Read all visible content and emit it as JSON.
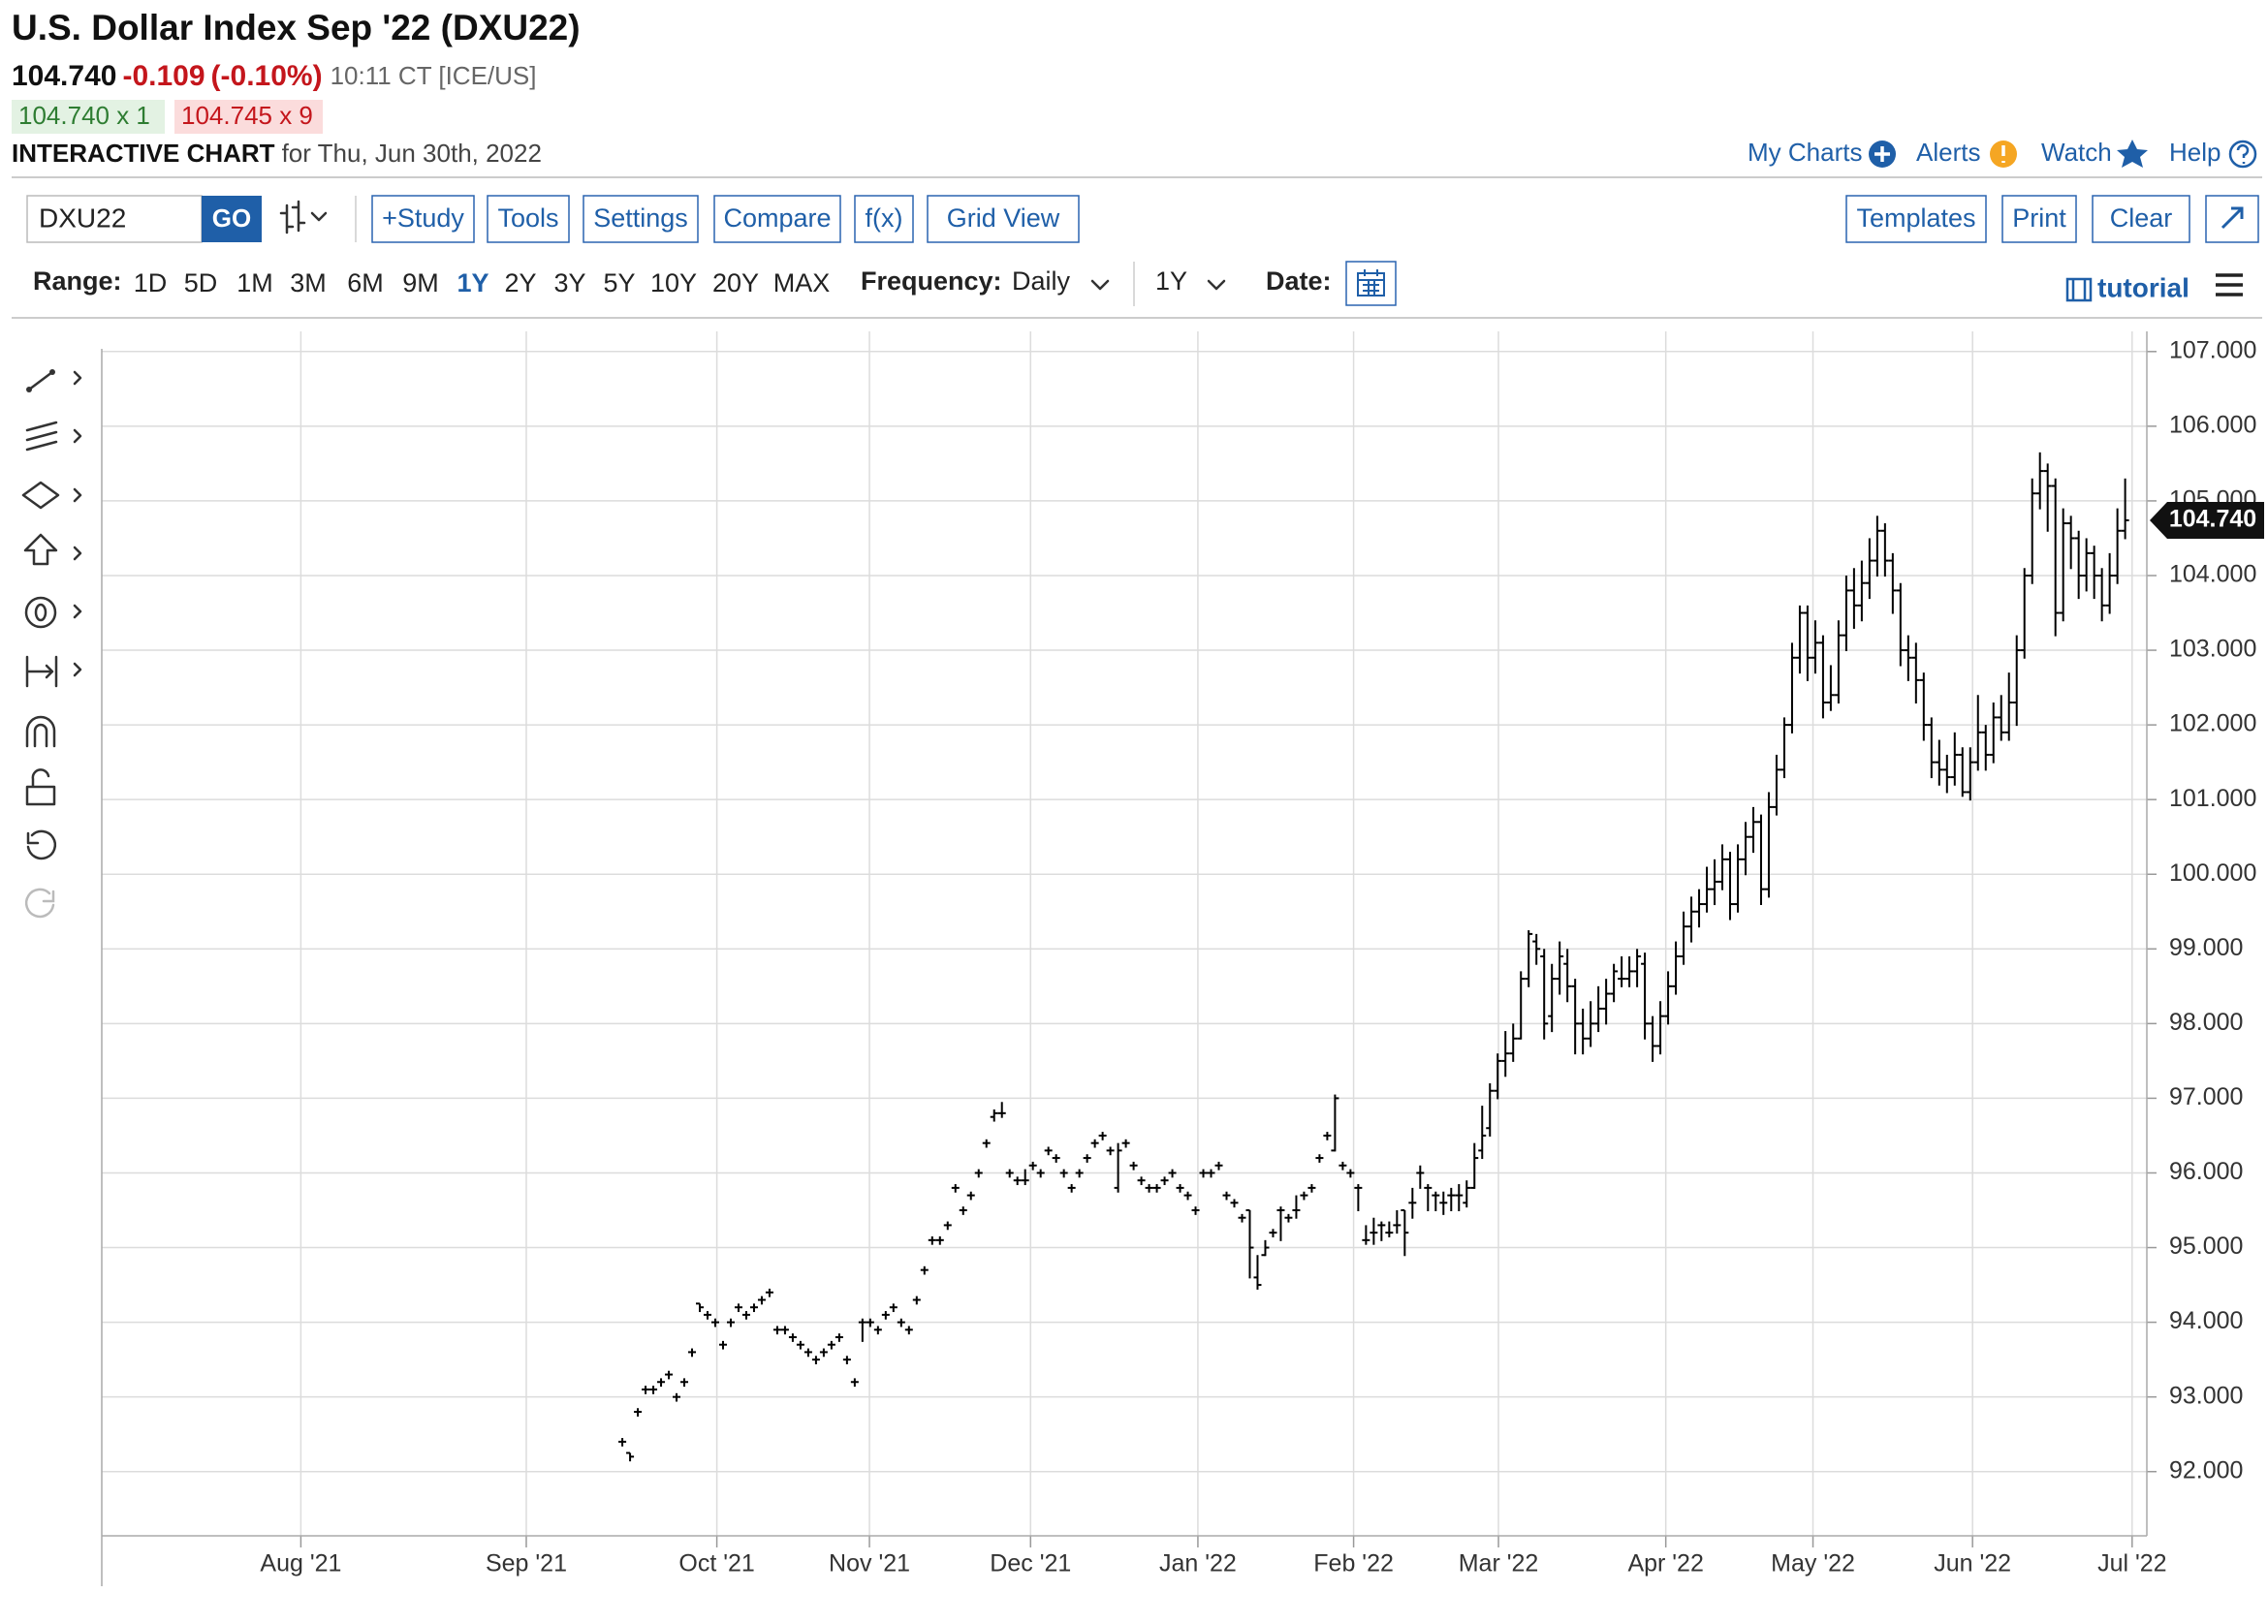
{
  "header": {
    "title": "U.S. Dollar Index Sep '22 (DXU22)",
    "last": "104.740",
    "change": "-0.109",
    "change_percent": "(-0.10%)",
    "time": "10:11 CT [ICE/US]",
    "bid": "104.740 x 1",
    "ask": "104.745 x 9",
    "chart_label": "INTERACTIVE CHART",
    "date": "for Thu, Jun 30th, 2022",
    "links": [
      "My Charts",
      "Alerts",
      "Watch",
      "Help"
    ]
  },
  "toolbar": {
    "symbol": "DXU22",
    "go": "GO",
    "buttons": [
      "+Study",
      "Tools",
      "Settings",
      "Compare",
      "f(x)",
      "Grid View"
    ],
    "right_buttons": [
      "Templates",
      "Print",
      "Clear"
    ]
  },
  "range_bar": {
    "range_label": "Range:",
    "ranges": [
      "1D",
      "5D",
      "1M",
      "3M",
      "6M",
      "9M",
      "1Y",
      "2Y",
      "3Y",
      "5Y",
      "10Y",
      "20Y",
      "MAX"
    ],
    "selected": "1Y",
    "frequency_label": "Frequency:",
    "frequency": "Daily",
    "period": "1Y",
    "date_label": "Date:",
    "tutorial": "tutorial"
  },
  "chart_data": {
    "type": "ohlc",
    "color": "#000000",
    "grid": true,
    "xlim": [
      -67.2,
      196.8
    ],
    "xticks": [
      {
        "value": -41.5,
        "label": "Aug '21"
      },
      {
        "value": -12.4,
        "label": "Sep '21"
      },
      {
        "value": 12.2,
        "label": "Oct '21"
      },
      {
        "value": 31.9,
        "label": "Nov '21"
      },
      {
        "value": 52.7,
        "label": "Dec '21"
      },
      {
        "value": 74.3,
        "label": "Jan '22"
      },
      {
        "value": 94.4,
        "label": "Feb '22"
      },
      {
        "value": 113.1,
        "label": "Mar '22"
      },
      {
        "value": 134.7,
        "label": "Apr '22"
      },
      {
        "value": 153.7,
        "label": "May '22"
      },
      {
        "value": 174.3,
        "label": "Jun '22"
      },
      {
        "value": 194.9,
        "label": "Jul '22"
      }
    ],
    "ylim": [
      91.14,
      107.27
    ],
    "yticks": [
      {
        "value": 92,
        "label": "92.000"
      },
      {
        "value": 93,
        "label": "93.000"
      },
      {
        "value": 94,
        "label": "94.000"
      },
      {
        "value": 95,
        "label": "95.000"
      },
      {
        "value": 96,
        "label": "96.000"
      },
      {
        "value": 97,
        "label": "97.000"
      },
      {
        "value": 98,
        "label": "98.000"
      },
      {
        "value": 99,
        "label": "99.000"
      },
      {
        "value": 100,
        "label": "100.000"
      },
      {
        "value": 101,
        "label": "101.000"
      },
      {
        "value": 102,
        "label": "102.000"
      },
      {
        "value": 103,
        "label": "103.000"
      },
      {
        "value": 104,
        "label": "104.000"
      },
      {
        "value": 105,
        "label": "105.000"
      },
      {
        "value": 106,
        "label": "106.000"
      },
      {
        "value": 107,
        "label": "107.000"
      }
    ],
    "last_price": {
      "value": 104.74,
      "label": "104.740"
    },
    "ohlc": [
      [
        92.4,
        92.45,
        92.35,
        92.4
      ],
      [
        92.25,
        92.25,
        92.15,
        92.2
      ],
      [
        92.8,
        92.85,
        92.75,
        92.8
      ],
      [
        93.1,
        93.15,
        93.05,
        93.1
      ],
      [
        93.1,
        93.15,
        93.05,
        93.1
      ],
      [
        93.2,
        93.25,
        93.15,
        93.2
      ],
      [
        93.3,
        93.35,
        93.25,
        93.3
      ],
      [
        93.0,
        93.05,
        92.95,
        93.0
      ],
      [
        93.2,
        93.25,
        93.15,
        93.2
      ],
      [
        93.6,
        93.65,
        93.55,
        93.6
      ],
      [
        94.25,
        94.25,
        94.15,
        94.2
      ],
      [
        94.1,
        94.15,
        94.05,
        94.1
      ],
      [
        94.0,
        94.05,
        93.95,
        94.0
      ],
      [
        93.7,
        93.75,
        93.65,
        93.7
      ],
      [
        94.0,
        94.05,
        93.95,
        94.0
      ],
      [
        94.2,
        94.25,
        94.15,
        94.2
      ],
      [
        94.1,
        94.15,
        94.05,
        94.1
      ],
      [
        94.2,
        94.25,
        94.15,
        94.2
      ],
      [
        94.3,
        94.35,
        94.25,
        94.3
      ],
      [
        94.4,
        94.45,
        94.35,
        94.4
      ],
      [
        93.9,
        93.95,
        93.85,
        93.9
      ],
      [
        93.9,
        93.95,
        93.85,
        93.9
      ],
      [
        93.8,
        93.85,
        93.75,
        93.8
      ],
      [
        93.7,
        93.75,
        93.65,
        93.7
      ],
      [
        93.6,
        93.65,
        93.55,
        93.6
      ],
      [
        93.5,
        93.55,
        93.45,
        93.5
      ],
      [
        93.6,
        93.65,
        93.55,
        93.6
      ],
      [
        93.7,
        93.75,
        93.65,
        93.7
      ],
      [
        93.8,
        93.85,
        93.75,
        93.8
      ],
      [
        93.5,
        93.55,
        93.45,
        93.5
      ],
      [
        93.2,
        93.25,
        93.15,
        93.2
      ],
      [
        94.0,
        94.05,
        93.75,
        94.0
      ],
      [
        94.0,
        94.05,
        93.95,
        94.0
      ],
      [
        93.9,
        93.95,
        93.85,
        93.9
      ],
      [
        94.1,
        94.15,
        94.05,
        94.1
      ],
      [
        94.2,
        94.25,
        94.15,
        94.2
      ],
      [
        94.0,
        94.05,
        93.95,
        94.0
      ],
      [
        93.9,
        93.95,
        93.85,
        93.9
      ],
      [
        94.3,
        94.35,
        94.25,
        94.3
      ],
      [
        94.7,
        94.75,
        94.65,
        94.7
      ],
      [
        95.1,
        95.15,
        95.05,
        95.1
      ],
      [
        95.1,
        95.15,
        95.05,
        95.1
      ],
      [
        95.3,
        95.35,
        95.25,
        95.3
      ],
      [
        95.8,
        95.85,
        95.75,
        95.8
      ],
      [
        95.5,
        95.55,
        95.45,
        95.5
      ],
      [
        95.7,
        95.75,
        95.65,
        95.7
      ],
      [
        96.0,
        96.05,
        95.95,
        96.0
      ],
      [
        96.4,
        96.45,
        96.35,
        96.4
      ],
      [
        96.75,
        96.85,
        96.7,
        96.8
      ],
      [
        96.8,
        96.95,
        96.75,
        96.8
      ],
      [
        96.0,
        96.05,
        95.95,
        96.0
      ],
      [
        95.9,
        95.95,
        95.85,
        95.9
      ],
      [
        95.9,
        96.05,
        95.85,
        95.9
      ],
      [
        96.1,
        96.15,
        96.05,
        96.1
      ],
      [
        96.0,
        96.05,
        95.95,
        96.0
      ],
      [
        96.3,
        96.35,
        96.25,
        96.3
      ],
      [
        96.2,
        96.25,
        96.15,
        96.2
      ],
      [
        96.0,
        96.05,
        95.95,
        96.0
      ],
      [
        95.8,
        95.85,
        95.75,
        95.8
      ],
      [
        96.0,
        96.05,
        95.95,
        96.0
      ],
      [
        96.2,
        96.25,
        96.15,
        96.2
      ],
      [
        96.4,
        96.45,
        96.35,
        96.4
      ],
      [
        96.5,
        96.55,
        96.45,
        96.5
      ],
      [
        96.3,
        96.35,
        96.25,
        96.3
      ],
      [
        95.8,
        96.4,
        95.75,
        96.3
      ],
      [
        96.4,
        96.45,
        96.35,
        96.4
      ],
      [
        96.1,
        96.15,
        96.05,
        96.1
      ],
      [
        95.9,
        95.95,
        95.85,
        95.9
      ],
      [
        95.8,
        95.85,
        95.75,
        95.8
      ],
      [
        95.8,
        95.85,
        95.75,
        95.8
      ],
      [
        95.9,
        95.95,
        95.85,
        95.9
      ],
      [
        96.0,
        96.05,
        95.95,
        96.0
      ],
      [
        95.8,
        95.85,
        95.75,
        95.8
      ],
      [
        95.7,
        95.75,
        95.65,
        95.7
      ],
      [
        95.5,
        95.55,
        95.45,
        95.5
      ],
      [
        96.0,
        96.05,
        95.95,
        96.0
      ],
      [
        96.0,
        96.05,
        95.95,
        96.0
      ],
      [
        96.1,
        96.15,
        96.05,
        96.1
      ],
      [
        95.7,
        95.75,
        95.65,
        95.7
      ],
      [
        95.6,
        95.65,
        95.55,
        95.6
      ],
      [
        95.4,
        95.45,
        95.35,
        95.4
      ],
      [
        95.5,
        95.5,
        94.6,
        95.0
      ],
      [
        94.6,
        94.9,
        94.45,
        94.5
      ],
      [
        94.9,
        95.1,
        94.9,
        95.0
      ],
      [
        95.2,
        95.25,
        95.15,
        95.2
      ],
      [
        95.5,
        95.55,
        95.1,
        95.5
      ],
      [
        95.4,
        95.45,
        95.35,
        95.4
      ],
      [
        95.5,
        95.7,
        95.4,
        95.5
      ],
      [
        95.7,
        95.75,
        95.65,
        95.7
      ],
      [
        95.8,
        95.85,
        95.75,
        95.8
      ],
      [
        96.2,
        96.25,
        96.15,
        96.2
      ],
      [
        96.5,
        96.55,
        96.45,
        96.5
      ],
      [
        96.3,
        97.05,
        96.3,
        97.0
      ],
      [
        96.1,
        96.15,
        96.05,
        96.1
      ],
      [
        96.0,
        96.05,
        95.95,
        96.0
      ],
      [
        95.8,
        95.85,
        95.5,
        95.8
      ],
      [
        95.1,
        95.3,
        95.05,
        95.1
      ],
      [
        95.2,
        95.4,
        95.05,
        95.2
      ],
      [
        95.3,
        95.35,
        95.1,
        95.3
      ],
      [
        95.2,
        95.35,
        95.15,
        95.2
      ],
      [
        95.3,
        95.5,
        95.2,
        95.3
      ],
      [
        95.5,
        95.5,
        94.9,
        95.2
      ],
      [
        95.6,
        95.8,
        95.4,
        95.6
      ],
      [
        96.0,
        96.1,
        95.8,
        96.0
      ],
      [
        95.8,
        95.85,
        95.5,
        95.8
      ],
      [
        95.7,
        95.75,
        95.5,
        95.7
      ],
      [
        95.6,
        95.75,
        95.45,
        95.6
      ],
      [
        95.7,
        95.8,
        95.5,
        95.7
      ],
      [
        95.7,
        95.85,
        95.5,
        95.7
      ],
      [
        95.6,
        95.9,
        95.55,
        95.8
      ],
      [
        95.8,
        96.4,
        95.8,
        96.2
      ],
      [
        96.3,
        96.9,
        96.2,
        96.5
      ],
      [
        96.6,
        97.2,
        96.5,
        97.1
      ],
      [
        97.1,
        97.6,
        97.0,
        97.5
      ],
      [
        97.5,
        97.9,
        97.3,
        97.6
      ],
      [
        97.6,
        98.0,
        97.5,
        97.8
      ],
      [
        97.8,
        98.7,
        97.8,
        98.6
      ],
      [
        98.6,
        99.25,
        98.5,
        99.2
      ],
      [
        99.1,
        99.2,
        98.8,
        99.0
      ],
      [
        98.9,
        99.0,
        97.8,
        98.0
      ],
      [
        98.1,
        98.8,
        97.9,
        98.6
      ],
      [
        98.6,
        99.1,
        98.4,
        98.9
      ],
      [
        98.8,
        99.0,
        98.3,
        98.5
      ],
      [
        98.5,
        98.6,
        97.6,
        98.0
      ],
      [
        98.0,
        98.2,
        97.6,
        97.8
      ],
      [
        97.8,
        98.3,
        97.7,
        98.0
      ],
      [
        98.0,
        98.5,
        97.9,
        98.2
      ],
      [
        98.2,
        98.6,
        98.0,
        98.4
      ],
      [
        98.4,
        98.8,
        98.3,
        98.7
      ],
      [
        98.6,
        98.9,
        98.5,
        98.6
      ],
      [
        98.6,
        98.9,
        98.5,
        98.7
      ],
      [
        98.7,
        99.0,
        98.5,
        98.9
      ],
      [
        98.8,
        98.95,
        97.8,
        98.0
      ],
      [
        98.0,
        98.1,
        97.5,
        97.7
      ],
      [
        97.7,
        98.3,
        97.6,
        98.1
      ],
      [
        98.1,
        98.7,
        98.0,
        98.5
      ],
      [
        98.5,
        99.1,
        98.4,
        98.9
      ],
      [
        98.9,
        99.5,
        98.8,
        99.3
      ],
      [
        99.3,
        99.7,
        99.1,
        99.5
      ],
      [
        99.5,
        99.8,
        99.3,
        99.6
      ],
      [
        99.6,
        100.1,
        99.5,
        99.8
      ],
      [
        99.8,
        100.2,
        99.6,
        99.9
      ],
      [
        99.9,
        100.4,
        99.8,
        100.2
      ],
      [
        100.2,
        100.3,
        99.4,
        99.6
      ],
      [
        99.6,
        100.4,
        99.5,
        100.2
      ],
      [
        100.2,
        100.7,
        100.0,
        100.5
      ],
      [
        100.5,
        100.9,
        100.3,
        100.7
      ],
      [
        100.7,
        100.8,
        99.6,
        99.8
      ],
      [
        99.8,
        101.1,
        99.7,
        100.9
      ],
      [
        100.9,
        101.6,
        100.8,
        101.4
      ],
      [
        101.4,
        102.1,
        101.3,
        102.0
      ],
      [
        102.0,
        103.1,
        101.9,
        102.9
      ],
      [
        102.9,
        103.6,
        102.7,
        103.5
      ],
      [
        103.5,
        103.6,
        102.6,
        102.9
      ],
      [
        102.9,
        103.4,
        102.7,
        103.1
      ],
      [
        103.1,
        103.2,
        102.1,
        102.3
      ],
      [
        102.3,
        102.8,
        102.2,
        102.4
      ],
      [
        102.4,
        103.4,
        102.3,
        103.2
      ],
      [
        103.2,
        104.0,
        103.0,
        103.8
      ],
      [
        103.8,
        104.1,
        103.3,
        103.6
      ],
      [
        103.6,
        104.2,
        103.4,
        103.9
      ],
      [
        103.9,
        104.5,
        103.7,
        104.2
      ],
      [
        104.2,
        104.8,
        104.0,
        104.6
      ],
      [
        104.6,
        104.7,
        104.0,
        104.2
      ],
      [
        104.2,
        104.3,
        103.5,
        103.8
      ],
      [
        103.8,
        103.9,
        102.8,
        103.0
      ],
      [
        103.0,
        103.2,
        102.6,
        102.9
      ],
      [
        102.9,
        103.1,
        102.3,
        102.6
      ],
      [
        102.6,
        102.7,
        101.8,
        102.0
      ],
      [
        102.0,
        102.1,
        101.3,
        101.5
      ],
      [
        101.5,
        101.8,
        101.2,
        101.4
      ],
      [
        101.4,
        101.6,
        101.1,
        101.3
      ],
      [
        101.3,
        101.9,
        101.2,
        101.6
      ],
      [
        101.6,
        101.7,
        101.05,
        101.1
      ],
      [
        101.1,
        101.7,
        101.0,
        101.5
      ],
      [
        101.5,
        102.4,
        101.4,
        101.9
      ],
      [
        101.9,
        102.0,
        101.4,
        101.6
      ],
      [
        101.6,
        102.3,
        101.5,
        102.1
      ],
      [
        102.1,
        102.4,
        101.8,
        101.9
      ],
      [
        101.9,
        102.7,
        101.8,
        102.3
      ],
      [
        102.3,
        103.2,
        102.0,
        103.0
      ],
      [
        103.0,
        104.1,
        102.9,
        104.0
      ],
      [
        104.0,
        105.3,
        103.9,
        105.1
      ],
      [
        105.1,
        105.65,
        104.9,
        105.4
      ],
      [
        105.4,
        105.5,
        104.6,
        105.2
      ],
      [
        105.2,
        105.3,
        103.2,
        103.5
      ],
      [
        103.5,
        104.9,
        103.4,
        104.7
      ],
      [
        104.7,
        104.8,
        104.1,
        104.5
      ],
      [
        104.5,
        104.6,
        103.7,
        104.0
      ],
      [
        104.0,
        104.5,
        103.8,
        104.3
      ],
      [
        104.3,
        104.4,
        103.7,
        104.0
      ],
      [
        104.0,
        104.1,
        103.4,
        103.6
      ],
      [
        103.6,
        104.3,
        103.5,
        104.0
      ],
      [
        104.0,
        104.9,
        103.9,
        104.6
      ],
      [
        104.6,
        105.3,
        104.5,
        104.74
      ]
    ]
  }
}
